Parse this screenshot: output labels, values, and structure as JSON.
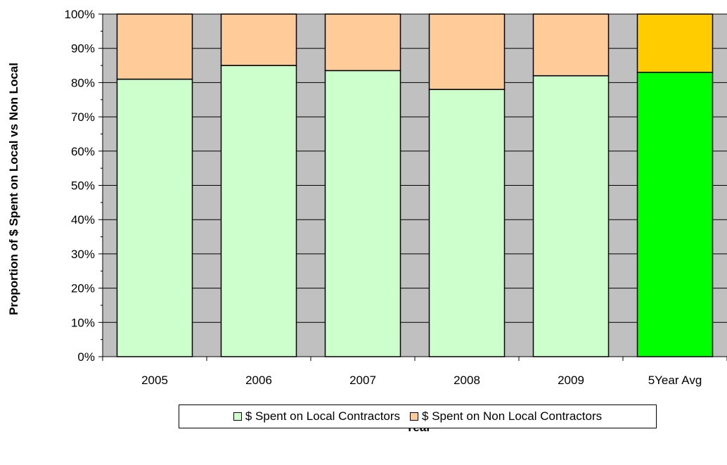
{
  "chart_data": {
    "type": "bar",
    "stacked": true,
    "xlabel": "Year",
    "ylabel": "Proportion of $ Spent on Local vs Non Local",
    "ylim": [
      0,
      100
    ],
    "y_ticks": [
      "0%",
      "10%",
      "20%",
      "30%",
      "40%",
      "50%",
      "60%",
      "70%",
      "80%",
      "90%",
      "100%"
    ],
    "categories": [
      "2005",
      "2006",
      "2007",
      "2008",
      "2009",
      "5Year Avg"
    ],
    "series": [
      {
        "name": "$ Spent on Local Contractors",
        "values": [
          81,
          85,
          83.5,
          78,
          82,
          83
        ],
        "color": "#ccffcc",
        "highlight_color": "#00ff00"
      },
      {
        "name": "$ Spent on Non Local Contractors",
        "values": [
          19,
          15,
          16.5,
          22,
          18,
          17
        ],
        "color": "#ffcc99",
        "highlight_color": "#ffcc00"
      }
    ],
    "highlight_category": "5Year Avg",
    "plot_background": "#c0c0c0",
    "grid": true,
    "legend_position": "bottom"
  }
}
